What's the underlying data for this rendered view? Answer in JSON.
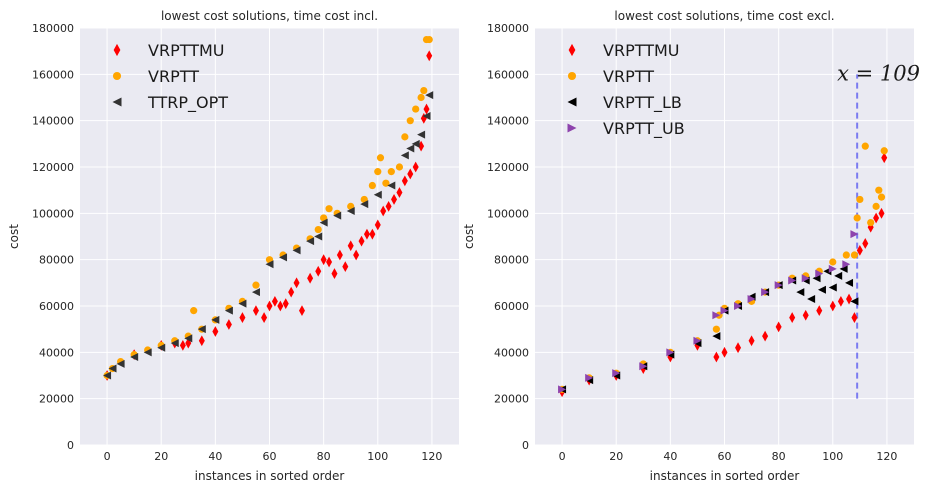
{
  "chart_data": [
    {
      "type": "scatter",
      "title": "lowest cost solutions, time cost incl.",
      "xlabel": "instances in sorted order",
      "ylabel": "cost",
      "xlim": [
        -10,
        130
      ],
      "ylim": [
        0,
        180000
      ],
      "xticks": [
        0,
        20,
        40,
        60,
        80,
        100,
        120
      ],
      "yticks": [
        0,
        20000,
        40000,
        60000,
        80000,
        100000,
        120000,
        140000,
        160000,
        180000
      ],
      "grid": true,
      "legend_position": "top-left",
      "series": [
        {
          "name": "VRPTTMU",
          "color": "#ff0000",
          "marker": "diamond",
          "values": [
            [
              0,
              30000
            ],
            [
              10,
              39000
            ],
            [
              20,
              43000
            ],
            [
              25,
              44000
            ],
            [
              28,
              43000
            ],
            [
              30,
              44000
            ],
            [
              35,
              45000
            ],
            [
              40,
              49000
            ],
            [
              45,
              52000
            ],
            [
              50,
              55000
            ],
            [
              55,
              58000
            ],
            [
              58,
              55000
            ],
            [
              60,
              60000
            ],
            [
              62,
              62000
            ],
            [
              64,
              60000
            ],
            [
              66,
              61000
            ],
            [
              68,
              66000
            ],
            [
              70,
              70000
            ],
            [
              72,
              58000
            ],
            [
              75,
              72000
            ],
            [
              78,
              75000
            ],
            [
              80,
              80000
            ],
            [
              82,
              79000
            ],
            [
              84,
              74000
            ],
            [
              86,
              82000
            ],
            [
              88,
              77000
            ],
            [
              90,
              86000
            ],
            [
              92,
              82000
            ],
            [
              94,
              88000
            ],
            [
              96,
              91000
            ],
            [
              98,
              91000
            ],
            [
              100,
              95000
            ],
            [
              102,
              101000
            ],
            [
              104,
              103000
            ],
            [
              106,
              106000
            ],
            [
              108,
              109000
            ],
            [
              110,
              114000
            ],
            [
              112,
              117000
            ],
            [
              114,
              120000
            ],
            [
              116,
              129000
            ],
            [
              117,
              141000
            ],
            [
              118,
              145000
            ],
            [
              119,
              168000
            ]
          ]
        },
        {
          "name": "VRPTT",
          "color": "#ffa500",
          "marker": "circle",
          "values": [
            [
              0,
              30000
            ],
            [
              2,
              33000
            ],
            [
              5,
              36000
            ],
            [
              10,
              39000
            ],
            [
              15,
              41000
            ],
            [
              20,
              43000
            ],
            [
              25,
              45000
            ],
            [
              30,
              47000
            ],
            [
              32,
              58000
            ],
            [
              35,
              50000
            ],
            [
              40,
              54000
            ],
            [
              45,
              59000
            ],
            [
              50,
              62000
            ],
            [
              55,
              69000
            ],
            [
              60,
              80000
            ],
            [
              65,
              82000
            ],
            [
              70,
              85000
            ],
            [
              75,
              89000
            ],
            [
              78,
              93000
            ],
            [
              80,
              98000
            ],
            [
              82,
              102000
            ],
            [
              85,
              100000
            ],
            [
              90,
              103000
            ],
            [
              95,
              106000
            ],
            [
              98,
              112000
            ],
            [
              100,
              118000
            ],
            [
              101,
              124000
            ],
            [
              103,
              113000
            ],
            [
              105,
              118000
            ],
            [
              108,
              120000
            ],
            [
              110,
              133000
            ],
            [
              112,
              140000
            ],
            [
              114,
              145000
            ],
            [
              116,
              150000
            ],
            [
              117,
              153000
            ],
            [
              118,
              175000
            ],
            [
              119,
              175000
            ]
          ]
        },
        {
          "name": "TTRP_OPT",
          "color": "#333333",
          "marker": "triangle-left",
          "values": [
            [
              0,
              30000
            ],
            [
              2,
              33000
            ],
            [
              5,
              35000
            ],
            [
              10,
              38000
            ],
            [
              15,
              40000
            ],
            [
              20,
              42000
            ],
            [
              25,
              44000
            ],
            [
              30,
              46000
            ],
            [
              35,
              50000
            ],
            [
              40,
              54000
            ],
            [
              45,
              58000
            ],
            [
              50,
              61000
            ],
            [
              55,
              66000
            ],
            [
              60,
              78000
            ],
            [
              65,
              81000
            ],
            [
              70,
              84000
            ],
            [
              75,
              88000
            ],
            [
              78,
              90000
            ],
            [
              80,
              96000
            ],
            [
              85,
              99000
            ],
            [
              90,
              101000
            ],
            [
              95,
              104000
            ],
            [
              100,
              108000
            ],
            [
              105,
              112000
            ],
            [
              110,
              125000
            ],
            [
              112,
              128000
            ],
            [
              114,
              130000
            ],
            [
              116,
              134000
            ],
            [
              118,
              142000
            ],
            [
              119,
              151000
            ]
          ]
        }
      ]
    },
    {
      "type": "scatter",
      "title": "lowest cost solutions, time cost excl.",
      "xlabel": "instances in sorted order",
      "ylabel": "cost",
      "xlim": [
        -10,
        130
      ],
      "ylim": [
        0,
        180000
      ],
      "xticks": [
        0,
        20,
        40,
        60,
        80,
        100,
        120
      ],
      "yticks": [
        0,
        20000,
        40000,
        60000,
        80000,
        100000,
        120000,
        140000,
        160000,
        180000
      ],
      "grid": true,
      "legend_position": "top-left",
      "annotation": {
        "text": "x = 109",
        "x": 109,
        "line_color": "#7b7bf0",
        "y_range": [
          20000,
          160000
        ]
      },
      "series": [
        {
          "name": "VRPTTMU",
          "color": "#ff0000",
          "marker": "diamond",
          "values": [
            [
              0,
              23000
            ],
            [
              10,
              28000
            ],
            [
              20,
              30000
            ],
            [
              30,
              33000
            ],
            [
              40,
              38000
            ],
            [
              50,
              43000
            ],
            [
              57,
              38000
            ],
            [
              60,
              40000
            ],
            [
              65,
              42000
            ],
            [
              70,
              45000
            ],
            [
              75,
              47000
            ],
            [
              80,
              51000
            ],
            [
              85,
              55000
            ],
            [
              90,
              56000
            ],
            [
              95,
              58000
            ],
            [
              100,
              60000
            ],
            [
              103,
              62000
            ],
            [
              106,
              63000
            ],
            [
              108,
              55000
            ],
            [
              110,
              84000
            ],
            [
              112,
              87000
            ],
            [
              114,
              94000
            ],
            [
              116,
              98000
            ],
            [
              118,
              100000
            ],
            [
              119,
              124000
            ]
          ]
        },
        {
          "name": "VRPTT",
          "color": "#ffa500",
          "marker": "circle",
          "values": [
            [
              0,
              24000
            ],
            [
              10,
              29000
            ],
            [
              20,
              31000
            ],
            [
              30,
              35000
            ],
            [
              40,
              40000
            ],
            [
              50,
              45000
            ],
            [
              57,
              50000
            ],
            [
              58,
              56000
            ],
            [
              60,
              59000
            ],
            [
              65,
              61000
            ],
            [
              70,
              62000
            ],
            [
              75,
              66000
            ],
            [
              80,
              69000
            ],
            [
              85,
              72000
            ],
            [
              90,
              73000
            ],
            [
              95,
              75000
            ],
            [
              100,
              79000
            ],
            [
              105,
              82000
            ],
            [
              108,
              82000
            ],
            [
              109,
              98000
            ],
            [
              110,
              106000
            ],
            [
              112,
              129000
            ],
            [
              114,
              96000
            ],
            [
              116,
              103000
            ],
            [
              117,
              110000
            ],
            [
              118,
              107000
            ],
            [
              119,
              127000
            ]
          ]
        },
        {
          "name": "VRPTT_LB",
          "color": "#000000",
          "marker": "triangle-left",
          "values": [
            [
              0,
              24000
            ],
            [
              10,
              28000
            ],
            [
              20,
              30000
            ],
            [
              30,
              34000
            ],
            [
              40,
              39000
            ],
            [
              50,
              44000
            ],
            [
              57,
              47000
            ],
            [
              60,
              58000
            ],
            [
              65,
              60000
            ],
            [
              70,
              64000
            ],
            [
              75,
              66000
            ],
            [
              80,
              69000
            ],
            [
              85,
              71000
            ],
            [
              88,
              66000
            ],
            [
              90,
              71000
            ],
            [
              92,
              63000
            ],
            [
              94,
              72000
            ],
            [
              96,
              67000
            ],
            [
              98,
              75000
            ],
            [
              100,
              68000
            ],
            [
              102,
              73000
            ],
            [
              104,
              76000
            ],
            [
              106,
              70000
            ],
            [
              108,
              62000
            ]
          ]
        },
        {
          "name": "VRPTT_UB",
          "color": "#8e44ad",
          "marker": "triangle-right",
          "values": [
            [
              0,
              24000
            ],
            [
              10,
              29000
            ],
            [
              20,
              31000
            ],
            [
              30,
              34000
            ],
            [
              40,
              40000
            ],
            [
              50,
              45000
            ],
            [
              57,
              56000
            ],
            [
              60,
              58000
            ],
            [
              65,
              60000
            ],
            [
              70,
              63000
            ],
            [
              75,
              66000
            ],
            [
              80,
              69000
            ],
            [
              85,
              71000
            ],
            [
              90,
              72000
            ],
            [
              95,
              74000
            ],
            [
              100,
              76000
            ],
            [
              105,
              78000
            ],
            [
              108,
              91000
            ]
          ]
        }
      ]
    }
  ]
}
